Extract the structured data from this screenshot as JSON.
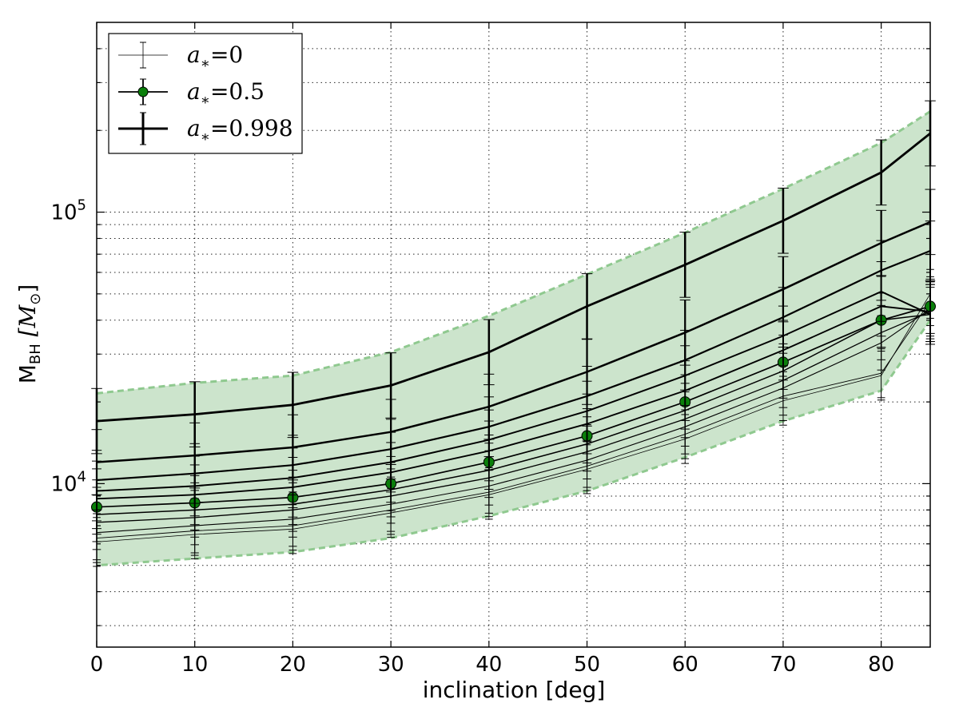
{
  "chart_data": {
    "type": "line",
    "xlabel": "inclination [deg]",
    "ylabel": "M",
    "ylabel_sub": "BH",
    "ylabel_unit": "[M",
    "ylabel_unit_sub": "⊙",
    "ylabel_unit_close": "]",
    "xlim": [
      0,
      85
    ],
    "ylim": [
      2500,
      500000
    ],
    "yscale": "log",
    "grid": true,
    "legend_position": "top-left",
    "x": [
      0,
      10,
      20,
      30,
      40,
      50,
      60,
      70,
      80,
      85
    ],
    "x_tick_labels": [
      "0",
      "10",
      "20",
      "30",
      "40",
      "50",
      "60",
      "70",
      "80"
    ],
    "y_tick_labels": [
      {
        "base": "10",
        "exp": "4",
        "value": 10000
      },
      {
        "base": "10",
        "exp": "5",
        "value": 100000
      }
    ],
    "band": {
      "color": "#cce4cc",
      "edge_color": "#8fc98f",
      "lower": [
        5000,
        5300,
        5600,
        6300,
        7600,
        9400,
        12500,
        17000,
        22000,
        40000
      ],
      "upper": [
        21500,
        23500,
        25000,
        30500,
        41500,
        59000,
        84000,
        122000,
        180000,
        235000
      ]
    },
    "series": [
      {
        "values": [
          6100,
          6500,
          6800,
          7800,
          9100,
          11300,
          14600,
          20200,
          25000,
          50000
        ],
        "width": 0.8,
        "err": 0.09
      },
      {
        "values": [
          6300,
          6700,
          7000,
          8000,
          9300,
          11600,
          15200,
          21000,
          25500,
          47000
        ],
        "width": 0.9,
        "err": 0.09
      },
      {
        "values": [
          6600,
          7000,
          7400,
          8400,
          9800,
          12200,
          16200,
          22500,
          33000,
          44000
        ],
        "width": 1.1,
        "err": 0.1
      },
      {
        "values": [
          7200,
          7500,
          8000,
          9000,
          10500,
          13100,
          17300,
          24000,
          36000,
          43000
        ],
        "width": 1.3,
        "err": 0.1
      },
      {
        "values": [
          7700,
          8000,
          8400,
          9500,
          11200,
          14000,
          18600,
          26000,
          40000,
          42000
        ],
        "width": 1.5,
        "err": 0.1
      },
      {
        "values": [
          8200,
          8500,
          8900,
          10000,
          12000,
          15000,
          20000,
          28000,
          40000,
          45000
        ],
        "width": 1.7,
        "err": 0.1,
        "markers": true,
        "marker_color": "#0a7f0a"
      },
      {
        "values": [
          8800,
          9100,
          9700,
          11000,
          13200,
          16600,
          22000,
          31000,
          45000,
          43000
        ],
        "width": 1.9,
        "err": 0.11
      },
      {
        "values": [
          9400,
          9800,
          10500,
          12000,
          14500,
          18500,
          25000,
          35000,
          51000,
          42000
        ],
        "width": 2.0,
        "err": 0.11
      },
      {
        "values": [
          10300,
          10900,
          11700,
          13400,
          16200,
          21000,
          28500,
          41000,
          61000,
          72000
        ],
        "width": 2.2,
        "err": 0.11
      },
      {
        "values": [
          12000,
          12700,
          13600,
          15500,
          19200,
          25800,
          36000,
          52000,
          77000,
          92000
        ],
        "width": 2.5,
        "err": 0.12
      },
      {
        "values": [
          17000,
          18000,
          19500,
          23000,
          30500,
          45000,
          64000,
          93000,
          140000,
          195000
        ],
        "width": 2.8,
        "err": 0.12
      }
    ],
    "legend": [
      {
        "label": "a",
        "sub": "∗",
        "eq": "=0",
        "line_width": 0.8,
        "marker": false,
        "err_size": 16
      },
      {
        "label": "a",
        "sub": "∗",
        "eq": "=0.5",
        "line_width": 1.8,
        "marker": true,
        "err_size": 16
      },
      {
        "label": "a",
        "sub": "∗",
        "eq": "=0.998",
        "line_width": 3.0,
        "marker": false,
        "err_size": 20
      }
    ]
  }
}
